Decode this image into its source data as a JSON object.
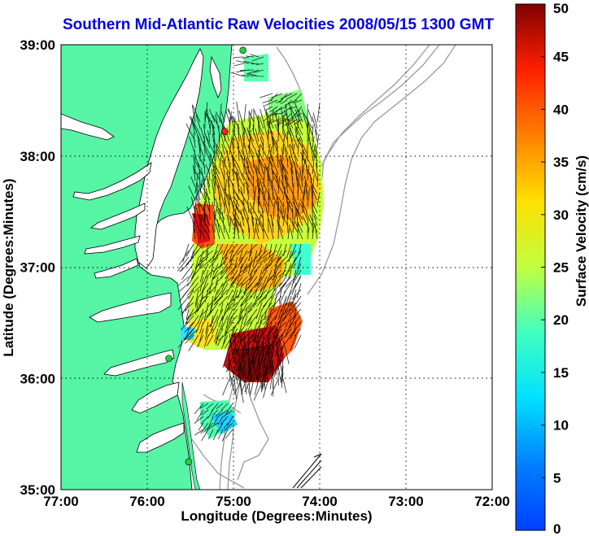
{
  "title": "Southern Mid-Atlantic Raw Velocities 2008/05/15 1300 GMT",
  "map": {
    "xlabel": "Longitude (Degrees:Minutes)",
    "ylabel": "Latitude (Degrees:Minutes)",
    "x_ticks": [
      "77:00",
      "76:00",
      "75:00",
      "74:00",
      "73:00",
      "72:00"
    ],
    "y_ticks": [
      "39:00",
      "38:00",
      "37:00",
      "36:00",
      "35:00"
    ],
    "lon_range": [
      -77,
      -72
    ],
    "lat_range": [
      35,
      39
    ],
    "grid": "dotted",
    "land_color": "#55f5a5",
    "bathymetry_color": "#9a9a9a"
  },
  "stations": [
    {
      "lon": -74.89,
      "lat": 38.95,
      "color": "#22cc44"
    },
    {
      "lon": -75.1,
      "lat": 38.22,
      "color": "#ff2020"
    },
    {
      "lon": -75.75,
      "lat": 36.18,
      "color": "#22cc44"
    },
    {
      "lon": -75.52,
      "lat": 35.25,
      "color": "#22cc44"
    }
  ],
  "colorbar": {
    "label": "Surface Velocity (cm/s)",
    "ticks": [
      "0",
      "5",
      "10",
      "15",
      "20",
      "25",
      "30",
      "35",
      "40",
      "45",
      "50"
    ],
    "min": 0,
    "max": 50
  }
}
